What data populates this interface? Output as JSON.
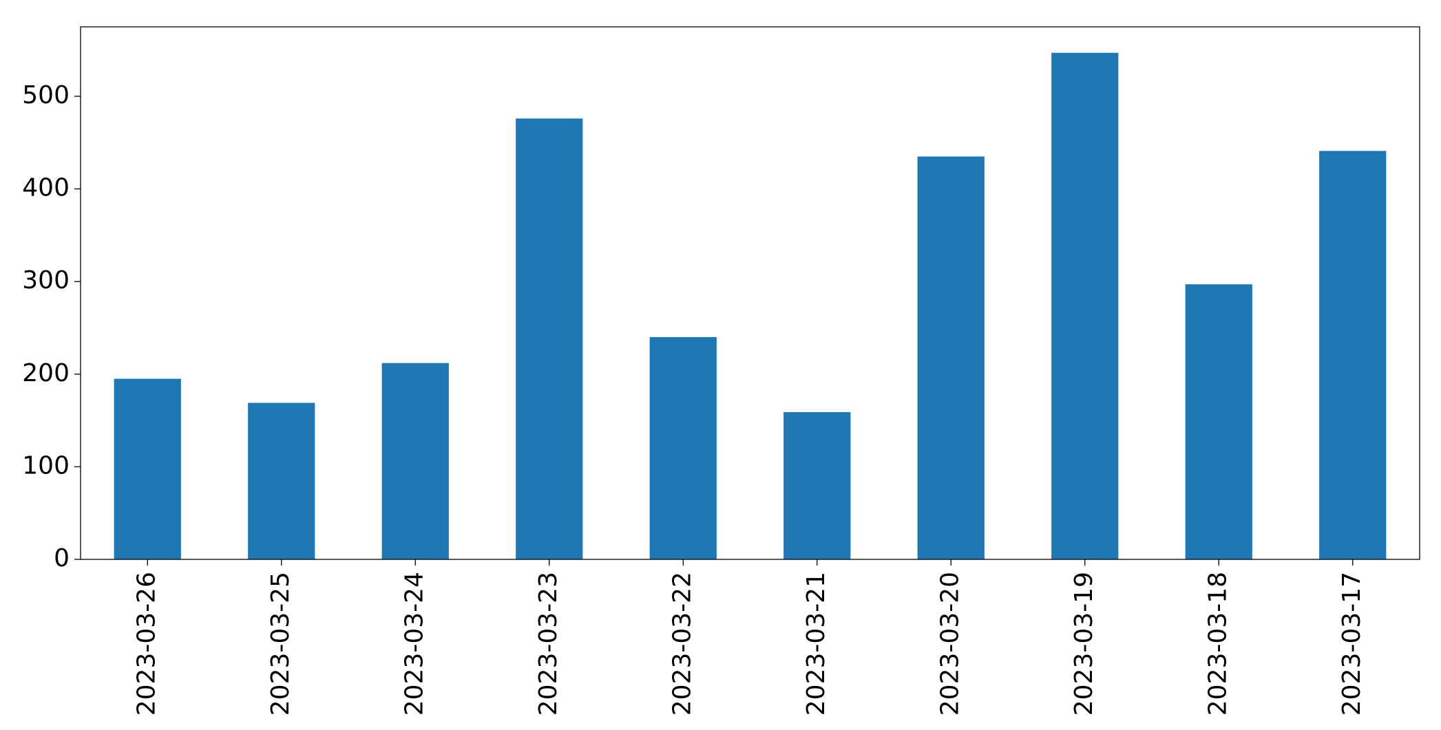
{
  "chart_data": {
    "type": "bar",
    "categories": [
      "2023-03-26",
      "2023-03-25",
      "2023-03-24",
      "2023-03-23",
      "2023-03-22",
      "2023-03-21",
      "2023-03-20",
      "2023-03-19",
      "2023-03-18",
      "2023-03-17"
    ],
    "values": [
      195,
      169,
      212,
      476,
      240,
      159,
      435,
      547,
      297,
      441
    ],
    "color": "#1f77b4",
    "ylim": [
      0,
      575
    ],
    "yticks": [
      0,
      100,
      200,
      300,
      400,
      500
    ],
    "grid": false
  }
}
